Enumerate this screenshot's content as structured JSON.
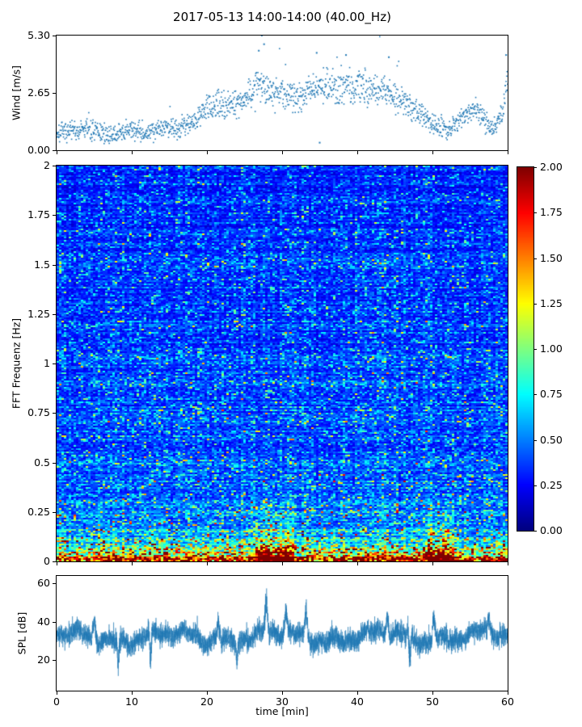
{
  "figure": {
    "title": "2017-05-13 14:00-14:00 (40.00_Hz)",
    "xlabel": "time [min]",
    "xticks": [
      "0",
      "10",
      "20",
      "30",
      "40",
      "50",
      "60"
    ]
  },
  "wind": {
    "ylabel": "Wind [m/s]",
    "yticks": [
      "5.30",
      "2.65",
      "0.00"
    ]
  },
  "spectrogram": {
    "ylabel": "FFT Frequenz [Hz]",
    "yticks": [
      "2",
      "1.75",
      "1.5",
      "1.25",
      "1",
      "0.75",
      "0.5",
      "0.25",
      "0"
    ]
  },
  "colorbar": {
    "ticks": [
      "2.00",
      "1.75",
      "1.50",
      "1.25",
      "1.00",
      "0.75",
      "0.50",
      "0.25",
      "0.00"
    ]
  },
  "spl": {
    "ylabel": "SPL [dB]",
    "yticks": [
      "60",
      "40",
      "20"
    ]
  },
  "chart_data": [
    {
      "type": "scatter",
      "title": "2017-05-13 14:00-14:00 (40.00_Hz)",
      "ylabel": "Wind [m/s]",
      "xlabel": "time [min]",
      "xlim": [
        0,
        60
      ],
      "ylim": [
        0,
        5.3
      ],
      "yticks": [
        0.0,
        2.65,
        5.3
      ],
      "marker_color": "#1f77b4",
      "n_points": 1500,
      "spread": 0.45,
      "mean_profile_x": [
        0,
        2,
        4,
        6,
        8,
        10,
        12,
        14,
        16,
        18,
        20,
        22,
        24,
        26,
        27,
        28,
        30,
        32,
        34,
        36,
        38,
        40,
        42,
        44,
        46,
        48,
        50,
        52,
        54,
        56,
        58,
        59,
        60
      ],
      "mean_profile_y": [
        0.8,
        0.9,
        1.0,
        0.8,
        0.7,
        1.0,
        0.8,
        1.1,
        1.0,
        1.3,
        2.0,
        2.1,
        2.2,
        2.6,
        3.0,
        2.8,
        2.6,
        2.5,
        2.8,
        3.0,
        2.9,
        3.0,
        2.8,
        2.7,
        2.3,
        1.8,
        1.2,
        0.9,
        1.5,
        1.9,
        1.0,
        1.5,
        3.0
      ],
      "outliers": [
        {
          "t": 27.3,
          "v": 5.3
        },
        {
          "t": 27.6,
          "v": 4.9
        },
        {
          "t": 26.9,
          "v": 4.6
        },
        {
          "t": 34.6,
          "v": 4.5
        },
        {
          "t": 35.0,
          "v": 0.35
        },
        {
          "t": 38.5,
          "v": 4.4
        },
        {
          "t": 59.8,
          "v": 4.4
        },
        {
          "t": 44.2,
          "v": 4.3
        }
      ]
    },
    {
      "type": "heatmap",
      "ylabel": "FFT Frequenz [Hz]",
      "xlim": [
        0,
        60
      ],
      "ylim": [
        0,
        2
      ],
      "clim": [
        0,
        2
      ],
      "colormap": "jet",
      "colorbar_ticks": [
        0.0,
        0.25,
        0.5,
        0.75,
        1.0,
        1.25,
        1.5,
        1.75,
        2.0
      ],
      "yticks": [
        0,
        0.25,
        0.5,
        0.75,
        1,
        1.25,
        1.5,
        1.75,
        2
      ],
      "freq_profile_hz": [
        0,
        0.02,
        0.04,
        0.07,
        0.12,
        0.2,
        0.3,
        0.5,
        0.8,
        1.2,
        1.6,
        2.0
      ],
      "freq_profile_value": [
        1.95,
        1.7,
        1.3,
        0.95,
        0.7,
        0.58,
        0.52,
        0.47,
        0.43,
        0.4,
        0.38,
        0.36
      ],
      "hot_intervals_min": [
        [
          26.5,
          31.5
        ],
        [
          49.5,
          53.0
        ]
      ],
      "hot_gain": 1.7,
      "hot_freq_max_hz": 0.35
    },
    {
      "type": "line",
      "ylabel": "SPL [dB]",
      "xlabel": "time [min]",
      "xlim": [
        0,
        60
      ],
      "ylim": [
        4,
        64
      ],
      "yticks": [
        20,
        40,
        60
      ],
      "xticks": [
        0,
        10,
        20,
        30,
        40,
        50,
        60
      ],
      "line_color": "#1f77b4",
      "mean_db": 32,
      "band_db": 7,
      "peaks": [
        {
          "t": 27.9,
          "db": 60
        },
        {
          "t": 30.5,
          "db": 50
        },
        {
          "t": 33.2,
          "db": 52
        },
        {
          "t": 21.5,
          "db": 46
        },
        {
          "t": 5.0,
          "db": 45
        },
        {
          "t": 44.0,
          "db": 47
        },
        {
          "t": 50.2,
          "db": 48
        },
        {
          "t": 57.5,
          "db": 46
        }
      ],
      "dips": [
        {
          "t": 8.2,
          "db": 10
        },
        {
          "t": 12.5,
          "db": 14
        },
        {
          "t": 24.0,
          "db": 15
        },
        {
          "t": 47.0,
          "db": 12
        }
      ]
    }
  ]
}
